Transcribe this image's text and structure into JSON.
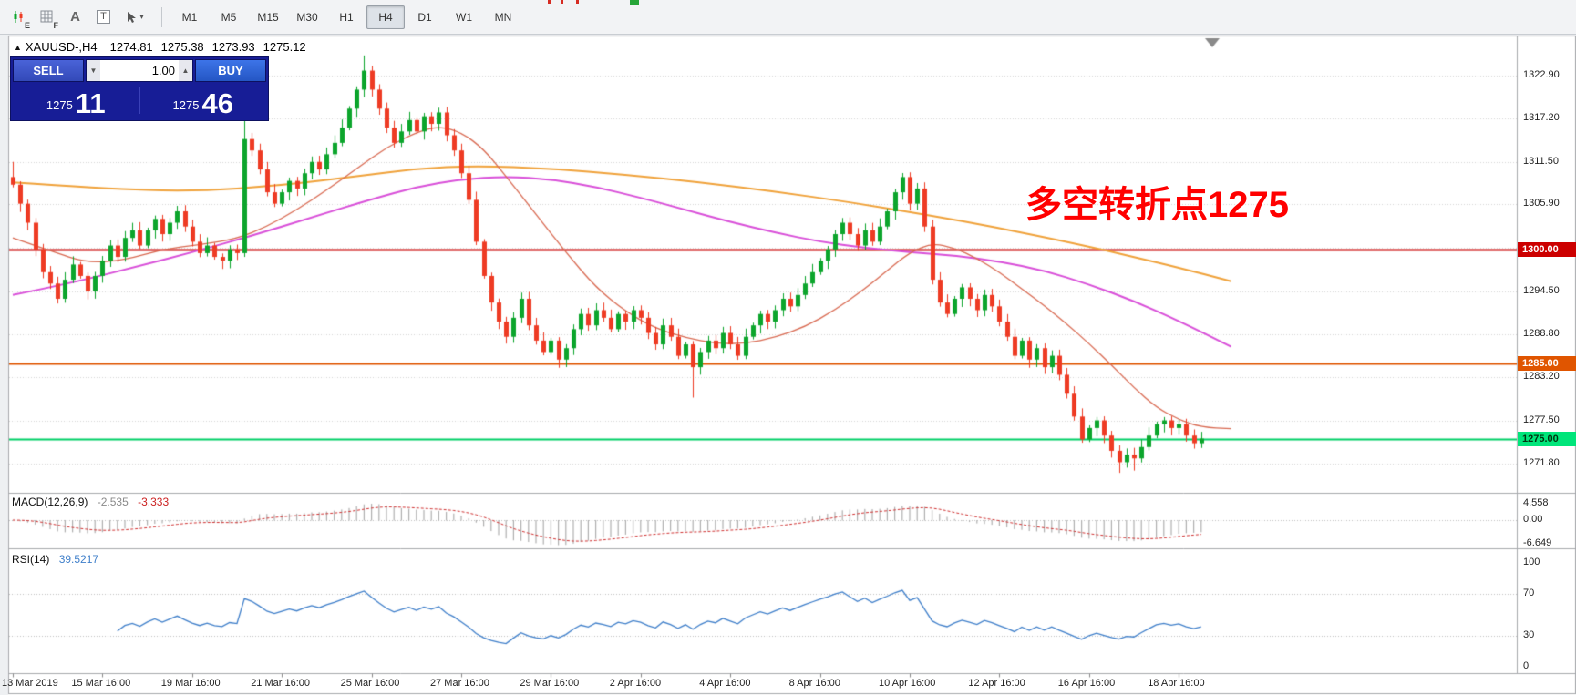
{
  "toolbar": {
    "icons": [
      {
        "name": "chart-mode",
        "glyph": "E"
      },
      {
        "name": "grid",
        "glyph": "F"
      },
      {
        "name": "text-label",
        "glyph": "A"
      },
      {
        "name": "text-box",
        "glyph": "T"
      },
      {
        "name": "cursor-tool",
        "glyph": "▾"
      }
    ],
    "timeframes": [
      "M1",
      "M5",
      "M15",
      "M30",
      "H1",
      "H4",
      "D1",
      "W1",
      "MN"
    ],
    "active_timeframe": "H4"
  },
  "symbol_header": {
    "collapse_glyph": "▲",
    "symbol": "XAUUSD-,H4",
    "open": "1274.81",
    "high": "1275.38",
    "low": "1273.93",
    "close": "1275.12"
  },
  "trade_panel": {
    "sell_label": "SELL",
    "buy_label": "BUY",
    "volume": "1.00",
    "volume_down_glyph": "▼",
    "volume_up_glyph": "▲",
    "sell_price_base": "1275",
    "sell_price_pips": "11",
    "buy_price_base": "1275",
    "buy_price_pips": "46"
  },
  "annotation": {
    "text": "多空转折点1275",
    "color": "#ff0000"
  },
  "chart_data": {
    "type": "candlestick",
    "symbol": "XAUUSD-",
    "timeframe": "H4",
    "colors": {
      "up": "#0ca52c",
      "down": "#ee3b24",
      "grid": "#d6d6d6",
      "macd_hist": "#b0b0b0",
      "macd_signal": "#d03030",
      "rsi": "#3f7fca",
      "sublevel": "#c0c0c0"
    },
    "candles": {
      "first_open": 1309.5,
      "closes": [
        1308.5,
        1306.0,
        1303.5,
        1300.0,
        1297.0,
        1295.5,
        1293.5,
        1296.0,
        1298.0,
        1296.5,
        1294.5,
        1296.5,
        1298.5,
        1300.5,
        1299.0,
        1301.5,
        1302.5,
        1300.5,
        1302.5,
        1304.0,
        1302.0,
        1303.5,
        1305.0,
        1303.0,
        1301.0,
        1299.5,
        1300.5,
        1299.0,
        1298.5,
        1300.0,
        1299.5,
        1314.5,
        1313.0,
        1310.5,
        1307.5,
        1306.0,
        1307.5,
        1309.0,
        1308.0,
        1310.0,
        1311.5,
        1310.5,
        1312.5,
        1314.0,
        1316.0,
        1318.5,
        1321.0,
        1323.5,
        1321.0,
        1318.5,
        1316.0,
        1314.0,
        1315.5,
        1317.0,
        1315.5,
        1317.5,
        1316.5,
        1318.0,
        1315.0,
        1313.0,
        1310.0,
        1306.5,
        1301.0,
        1296.5,
        1293.0,
        1290.5,
        1288.5,
        1291.0,
        1293.5,
        1290.0,
        1288.0,
        1286.5,
        1288.0,
        1285.5,
        1287.0,
        1289.5,
        1291.5,
        1290.0,
        1292.0,
        1291.0,
        1289.5,
        1291.5,
        1290.5,
        1292.0,
        1291.0,
        1289.0,
        1287.5,
        1290.0,
        1288.5,
        1286.0,
        1287.5,
        1284.5,
        1286.5,
        1288.0,
        1287.0,
        1289.0,
        1287.5,
        1286.0,
        1288.5,
        1290.0,
        1291.5,
        1290.5,
        1292.0,
        1293.5,
        1292.5,
        1294.0,
        1295.5,
        1297.0,
        1298.5,
        1300.0,
        1302.0,
        1303.5,
        1302.0,
        1300.5,
        1302.5,
        1301.0,
        1303.0,
        1305.0,
        1307.5,
        1309.5,
        1306.0,
        1308.0,
        1303.0,
        1296.0,
        1293.0,
        1291.5,
        1293.5,
        1295.0,
        1293.5,
        1292.0,
        1294.0,
        1292.5,
        1290.5,
        1288.5,
        1286.0,
        1288.0,
        1285.5,
        1287.0,
        1284.5,
        1286.0,
        1283.5,
        1281.0,
        1278.0,
        1275.0,
        1276.5,
        1277.5,
        1275.5,
        1273.5,
        1272.0,
        1273.0,
        1272.5,
        1274.0,
        1275.5,
        1277.0,
        1277.5,
        1276.5,
        1277.0,
        1275.5,
        1274.5,
        1275.1
      ],
      "special_wicks": {
        "0": [
          1311.5,
          null
        ],
        "31": [
          1317.0,
          1299.0
        ],
        "47": [
          1325.5,
          null
        ],
        "91": [
          null,
          1280.5
        ],
        "148": [
          null,
          1270.6
        ],
        "150": [
          null,
          1270.9
        ]
      }
    },
    "moving_averages": [
      {
        "name": "ma-slow",
        "color": "#f0a23a",
        "width": 2,
        "points": [
          [
            0,
            1308.8
          ],
          [
            12,
            1308.0
          ],
          [
            24,
            1307.6
          ],
          [
            36,
            1308.4
          ],
          [
            46,
            1309.6
          ],
          [
            54,
            1310.6
          ],
          [
            62,
            1311.0
          ],
          [
            72,
            1310.6
          ],
          [
            82,
            1309.8
          ],
          [
            92,
            1308.8
          ],
          [
            102,
            1307.6
          ],
          [
            112,
            1306.2
          ],
          [
            122,
            1304.6
          ],
          [
            132,
            1302.8
          ],
          [
            142,
            1300.8
          ],
          [
            150,
            1299.0
          ],
          [
            156,
            1297.6
          ],
          [
            163,
            1295.8
          ]
        ]
      },
      {
        "name": "ma-mid",
        "color": "#d94fd9",
        "width": 2,
        "points": [
          [
            0,
            1294.0
          ],
          [
            8,
            1295.6
          ],
          [
            16,
            1297.6
          ],
          [
            24,
            1299.6
          ],
          [
            32,
            1301.8
          ],
          [
            40,
            1304.2
          ],
          [
            48,
            1306.6
          ],
          [
            54,
            1308.2
          ],
          [
            60,
            1309.2
          ],
          [
            66,
            1309.6
          ],
          [
            72,
            1309.2
          ],
          [
            78,
            1308.2
          ],
          [
            84,
            1306.8
          ],
          [
            90,
            1305.2
          ],
          [
            96,
            1303.6
          ],
          [
            102,
            1302.2
          ],
          [
            108,
            1301.0
          ],
          [
            114,
            1300.2
          ],
          [
            120,
            1299.6
          ],
          [
            126,
            1299.2
          ],
          [
            132,
            1298.4
          ],
          [
            138,
            1297.2
          ],
          [
            144,
            1295.4
          ],
          [
            150,
            1293.2
          ],
          [
            156,
            1290.6
          ],
          [
            163,
            1287.2
          ]
        ]
      },
      {
        "name": "ma-fast",
        "color": "#d96a52",
        "width": 1.3,
        "points": [
          [
            0,
            1301.5
          ],
          [
            5,
            1299.8
          ],
          [
            10,
            1298.2
          ],
          [
            15,
            1298.6
          ],
          [
            20,
            1300.0
          ],
          [
            25,
            1300.6
          ],
          [
            30,
            1301.4
          ],
          [
            34,
            1303.0
          ],
          [
            38,
            1305.2
          ],
          [
            42,
            1307.8
          ],
          [
            46,
            1310.6
          ],
          [
            50,
            1313.4
          ],
          [
            54,
            1315.4
          ],
          [
            57,
            1316.2
          ],
          [
            60,
            1315.4
          ],
          [
            63,
            1313.2
          ],
          [
            66,
            1309.6
          ],
          [
            70,
            1304.6
          ],
          [
            74,
            1299.6
          ],
          [
            78,
            1295.0
          ],
          [
            82,
            1291.8
          ],
          [
            86,
            1289.6
          ],
          [
            90,
            1288.4
          ],
          [
            94,
            1287.6
          ],
          [
            98,
            1287.6
          ],
          [
            102,
            1288.4
          ],
          [
            106,
            1289.8
          ],
          [
            110,
            1292.0
          ],
          [
            114,
            1294.8
          ],
          [
            117,
            1297.2
          ],
          [
            120,
            1299.6
          ],
          [
            123,
            1300.8
          ],
          [
            126,
            1300.2
          ],
          [
            129,
            1298.8
          ],
          [
            132,
            1297.0
          ],
          [
            135,
            1294.8
          ],
          [
            138,
            1292.6
          ],
          [
            141,
            1290.2
          ],
          [
            144,
            1287.6
          ],
          [
            147,
            1284.8
          ],
          [
            150,
            1281.8
          ],
          [
            153,
            1279.2
          ],
          [
            156,
            1277.6
          ],
          [
            159,
            1276.6
          ],
          [
            163,
            1276.4
          ]
        ]
      }
    ],
    "levels": [
      {
        "value": 1300.0,
        "color": "#cc0000",
        "width": 2
      },
      {
        "value": 1285.0,
        "color": "#e05500",
        "width": 2
      },
      {
        "value": 1275.0,
        "color": "#00cf66",
        "width": 2
      }
    ],
    "price_axis": {
      "ticks": [
        {
          "label": "1322.90",
          "value": 1322.9
        },
        {
          "label": "1317.20",
          "value": 1317.2
        },
        {
          "label": "1311.50",
          "value": 1311.5
        },
        {
          "label": "1305.90",
          "value": 1305.9
        },
        {
          "label": "1294.50",
          "value": 1294.5
        },
        {
          "label": "1288.80",
          "value": 1288.8
        },
        {
          "label": "1283.20",
          "value": 1283.2
        },
        {
          "label": "1277.50",
          "value": 1277.5
        },
        {
          "label": "1271.80",
          "value": 1271.8
        }
      ],
      "grid_values": [
        1322.9,
        1317.2,
        1311.5,
        1305.9,
        1300.2,
        1294.5,
        1288.8,
        1283.2,
        1277.5,
        1271.8
      ],
      "tags": [
        {
          "label": "1300.00",
          "value": 1300.0,
          "bg": "#cc0000",
          "fg": "#ffffff"
        },
        {
          "label": "1285.00",
          "value": 1285.0,
          "bg": "#e05500",
          "fg": "#ffffff"
        },
        {
          "label": "1275.00",
          "value": 1275.0,
          "bg": "#00e57a",
          "fg": "#00330f"
        }
      ]
    },
    "time_axis": [
      {
        "label": "13 Mar 2019",
        "bar": 0
      },
      {
        "label": "15 Mar 16:00",
        "bar": 12
      },
      {
        "label": "19 Mar 16:00",
        "bar": 24
      },
      {
        "label": "21 Mar 16:00",
        "bar": 36
      },
      {
        "label": "25 Mar 16:00",
        "bar": 48
      },
      {
        "label": "27 Mar 16:00",
        "bar": 60
      },
      {
        "label": "29 Mar 16:00",
        "bar": 72
      },
      {
        "label": "2 Apr 16:00",
        "bar": 84
      },
      {
        "label": "4 Apr 16:00",
        "bar": 96
      },
      {
        "label": "8 Apr 16:00",
        "bar": 108
      },
      {
        "label": "10 Apr 16:00",
        "bar": 120
      },
      {
        "label": "12 Apr 16:00",
        "bar": 132
      },
      {
        "label": "16 Apr 16:00",
        "bar": 144
      },
      {
        "label": "18 Apr 16:00",
        "bar": 156
      }
    ],
    "macd": {
      "label": "MACD(12,26,9)",
      "main_value": "-2.535",
      "signal_value": "-3.333",
      "params": [
        12,
        26,
        9
      ],
      "axis": [
        {
          "label": "4.558",
          "value": 4.558
        },
        {
          "label": "0.00",
          "value": 0
        },
        {
          "label": "-6.649",
          "value": -6.649
        }
      ]
    },
    "rsi": {
      "label": "RSI(14)",
      "value": "39.5217",
      "period": 14,
      "levels": [
        70,
        30
      ],
      "axis": [
        {
          "label": "100",
          "value": 100
        },
        {
          "label": "70",
          "value": 70
        },
        {
          "label": "30",
          "value": 30
        },
        {
          "label": "0",
          "value": 0
        }
      ]
    }
  }
}
